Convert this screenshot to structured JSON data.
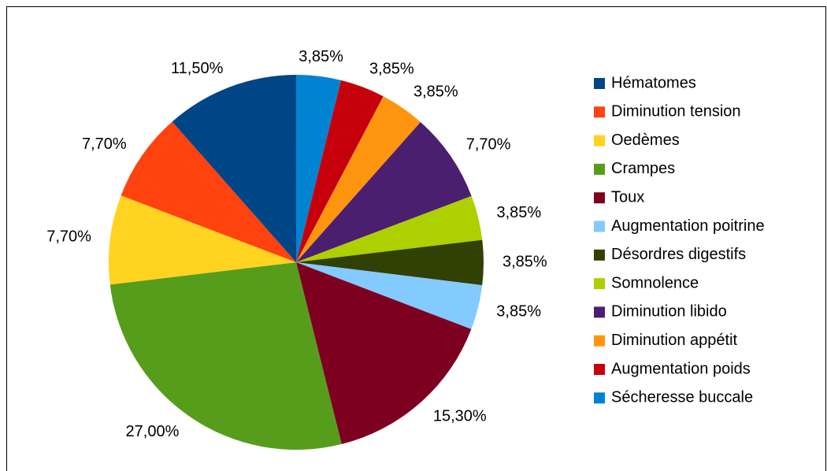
{
  "chart_data": {
    "type": "pie",
    "categories": [
      "Hématomes",
      "Diminution tension",
      "Oedèmes",
      "Crampes",
      "Toux",
      "Augmentation poitrine",
      "Désordres digestifs",
      "Somnolence",
      "Diminution libido",
      "Diminution appétit",
      "Augmentation poids",
      "Sécheresse buccale"
    ],
    "values": [
      11.5,
      7.7,
      7.7,
      27.0,
      15.3,
      3.85,
      3.85,
      3.85,
      7.7,
      3.85,
      3.85,
      3.85
    ],
    "value_labels": [
      "11,50%",
      "7,70%",
      "7,70%",
      "27,00%",
      "15,30%",
      "3,85%",
      "3,85%",
      "3,85%",
      "7,70%",
      "3,85%",
      "3,85%",
      "3,85%"
    ],
    "colors": [
      "#004586",
      "#ff420e",
      "#ffd320",
      "#579d1c",
      "#7e0021",
      "#83caff",
      "#314004",
      "#aecf00",
      "#4b1f6f",
      "#ff950e",
      "#c5000b",
      "#0084d1"
    ],
    "legend": "right"
  }
}
